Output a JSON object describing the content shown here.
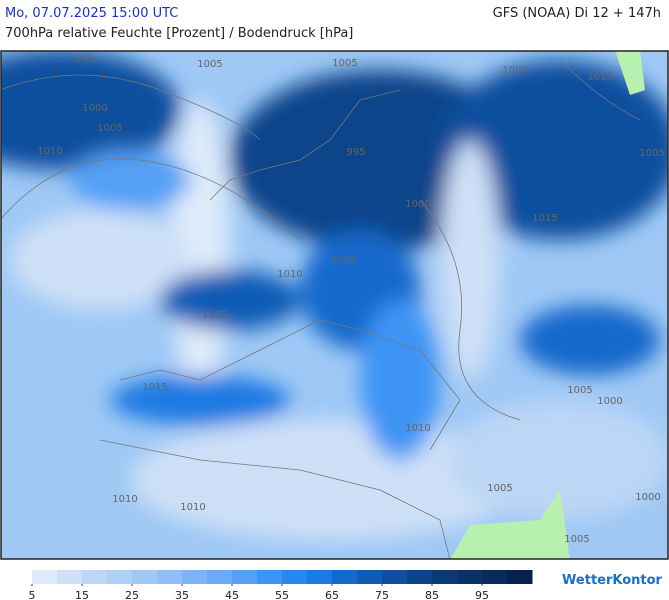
{
  "header": {
    "datetime": "Mo, 07.07.2025 15:00 UTC",
    "model": "GFS (NOAA) Di 12 + 147h",
    "subtitle": "700hPa relative Feuchte [Prozent] / Bodendruck [hPa]"
  },
  "isobar_labels": [
    "995",
    "1005",
    "1005",
    "1000",
    "1010",
    "1000",
    "1005",
    "1010",
    "995",
    "1005",
    "1000",
    "1015",
    "1005",
    "1010",
    "1015",
    "1015",
    "1005",
    "1000",
    "1010",
    "1005",
    "1000",
    "1010",
    "1010",
    "1005"
  ],
  "colorbar": {
    "colors": [
      "#deebfa",
      "#cde0f7",
      "#bcd6f5",
      "#add0f5",
      "#9fc8f5",
      "#8fbff5",
      "#7cb5f5",
      "#69abf5",
      "#55a0f5",
      "#3d94f5",
      "#2888f0",
      "#1a7ae3",
      "#1469cc",
      "#115bb5",
      "#0e4f9f",
      "#0c448a",
      "#0a3a78",
      "#093268",
      "#082b5c",
      "#062050"
    ],
    "lim": [
      5,
      105
    ],
    "ticks": [
      5,
      15,
      25,
      35,
      45,
      55,
      65,
      75,
      85,
      95
    ]
  },
  "logo": "WetterKontor"
}
